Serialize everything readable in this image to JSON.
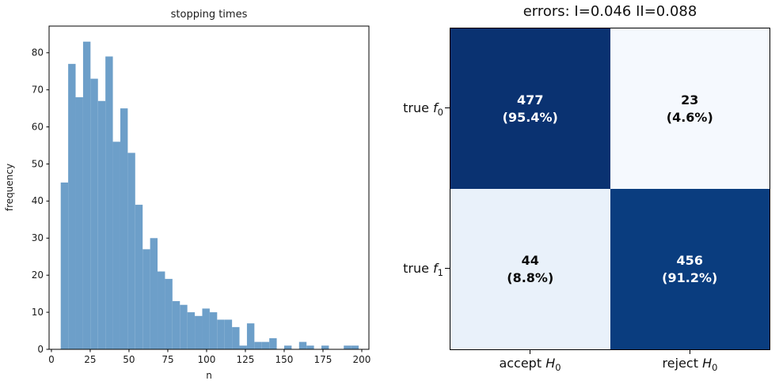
{
  "chart_data": [
    {
      "type": "bar",
      "title": "stopping times",
      "xlabel": "n",
      "ylabel": "frequency",
      "bar_color": "#6d9fc9",
      "bins_start": 6,
      "bin_width": 4.8,
      "values": [
        45,
        77,
        68,
        83,
        73,
        67,
        79,
        56,
        65,
        53,
        39,
        27,
        30,
        21,
        19,
        13,
        12,
        10,
        9,
        11,
        10,
        8,
        8,
        6,
        1,
        7,
        2,
        2,
        3,
        0,
        1,
        0,
        2,
        1,
        0,
        1,
        0,
        0,
        1,
        1
      ],
      "xticks": [
        0,
        25,
        50,
        75,
        100,
        125,
        150,
        175,
        200
      ],
      "yticks": [
        0,
        10,
        20,
        30,
        40,
        50,
        60,
        70,
        80
      ],
      "xlim": [
        -1.5,
        204.6
      ],
      "ylim": [
        0,
        87.2
      ],
      "grid": false,
      "legend_position": "none"
    },
    {
      "type": "heatmap",
      "title": "errors: I=0.046 II=0.088",
      "error_rates": {
        "type_I": "0.046",
        "type_II": "0.088"
      },
      "row_labels": [
        {
          "word": "true",
          "var": "f",
          "sub": "0"
        },
        {
          "word": "true",
          "var": "f",
          "sub": "1"
        }
      ],
      "col_labels": [
        {
          "word": "accept",
          "var": "H",
          "sub": "0"
        },
        {
          "word": "reject",
          "var": "H",
          "sub": "0"
        }
      ],
      "cells": [
        [
          {
            "count": "477",
            "pct": "(95.4%)",
            "bg": "#0a3271",
            "fg": "#ffffff"
          },
          {
            "count": "23",
            "pct": "(4.6%)",
            "bg": "#f5f9fe",
            "fg": "#0a0a0a"
          }
        ],
        [
          {
            "count": "44",
            "pct": "(8.8%)",
            "bg": "#e9f1fa",
            "fg": "#0a0a0a"
          },
          {
            "count": "456",
            "pct": "(91.2%)",
            "bg": "#0a3d7f",
            "fg": "#ffffff"
          }
        ]
      ]
    }
  ]
}
